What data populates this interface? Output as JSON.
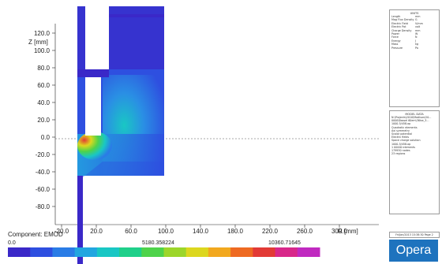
{
  "plot": {
    "y_axis_label": "Z [mm]",
    "x_axis_label": "R [mm]",
    "y_ticks": [
      "120.0",
      "100.0",
      "80.0",
      "60.0",
      "40.0",
      "20.0",
      "0.0",
      "-20.0",
      "-40.0",
      "-60.0",
      "-80.0"
    ],
    "x_ticks": [
      "-20.0",
      "20.0",
      "60.0",
      "100.0",
      "140.0",
      "180.0",
      "220.0",
      "260.0",
      "300.0"
    ]
  },
  "colorbar": {
    "component_label": "Component: EMOD",
    "min": "0.0",
    "mid": "5180.358224",
    "max": "10360.71645",
    "colors": [
      "#3a28c8",
      "#2e4fe0",
      "#2a7ce6",
      "#22a6e0",
      "#19c7c4",
      "#1fd08a",
      "#4ed34a",
      "#9cd62a",
      "#dcd71e",
      "#f2a81e",
      "#ee6a22",
      "#e23a36",
      "#d8288a",
      "#c02ac0"
    ]
  },
  "units_panel": {
    "title": "UNITS",
    "rows": [
      {
        "k": "Length",
        "v": "mm"
      },
      {
        "k": "Mag Flux Density",
        "v": "G"
      },
      {
        "k": "Electric Field",
        "v": "V/mm"
      },
      {
        "k": "Electric Pot",
        "v": "volt"
      },
      {
        "k": "Charge Density",
        "v": "mm"
      },
      {
        "k": "Power",
        "v": "W"
      },
      {
        "k": "Force",
        "v": "N"
      },
      {
        "k": "Energy",
        "v": "J"
      },
      {
        "k": "Mass",
        "v": "kg"
      },
      {
        "k": "Pressure",
        "v": "Pa"
      }
    ]
  },
  "model_panel": {
    "title": "MODEL DATA",
    "lines": [
      "N:\\Projects\\2010\\Madison\\20...",
      "0000\\Bassel 60em\\36ise_3...",
      "1000-5/458.op",
      "Quadratic elements",
      "Axi symmetry",
      "Scalar potential",
      "Electric fields",
      "Space charge solution",
      "1000-5/458.op",
      "1 00000 elements",
      "179930 nodes",
      "23 regions"
    ]
  },
  "status_text": "Fri/Jan/2013 15:38:30 Page 2",
  "logo_text": "Opera"
}
